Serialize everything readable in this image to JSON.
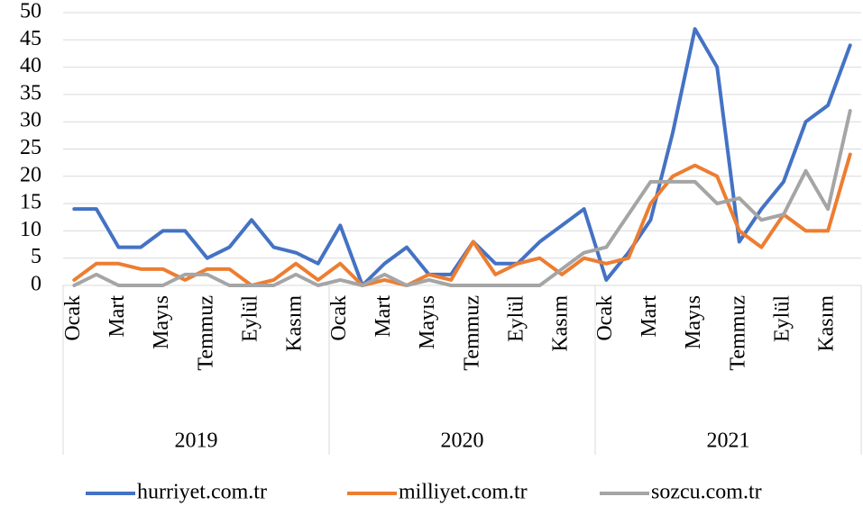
{
  "chart_data": {
    "type": "line",
    "categories": [
      "Ocak",
      null,
      "Mart",
      null,
      "Mayıs",
      null,
      "Temmuz",
      null,
      "Eylül",
      null,
      "Kasım",
      null,
      "Ocak",
      null,
      "Mart",
      null,
      "Mayıs",
      null,
      "Temmuz",
      null,
      "Eylül",
      null,
      "Kasım",
      null,
      "Ocak",
      null,
      "Mart",
      null,
      "Mayıs",
      null,
      "Temmuz",
      null,
      "Eylül",
      null,
      "Kasım",
      null
    ],
    "group_labels": [
      "2019",
      "2020",
      "2021"
    ],
    "series": [
      {
        "name": "hurriyet.com.tr",
        "color": "#4472c4",
        "values": [
          14,
          14,
          7,
          7,
          10,
          10,
          5,
          7,
          12,
          7,
          6,
          4,
          11,
          0,
          4,
          7,
          2,
          2,
          8,
          4,
          4,
          8,
          11,
          14,
          1,
          6,
          12,
          28,
          47,
          40,
          8,
          14,
          19,
          30,
          33,
          44
        ]
      },
      {
        "name": "milliyet.com.tr",
        "color": "#ed7d31",
        "values": [
          1,
          4,
          4,
          3,
          3,
          1,
          3,
          3,
          0,
          1,
          4,
          1,
          4,
          0,
          1,
          0,
          2,
          1,
          8,
          2,
          4,
          5,
          2,
          5,
          4,
          5,
          15,
          20,
          22,
          20,
          10,
          7,
          13,
          10,
          10,
          24
        ]
      },
      {
        "name": "sozcu.com.tr",
        "color": "#a5a5a5",
        "values": [
          0,
          2,
          0,
          0,
          0,
          2,
          2,
          0,
          0,
          0,
          2,
          0,
          1,
          0,
          2,
          0,
          1,
          0,
          0,
          0,
          0,
          0,
          3,
          6,
          7,
          13,
          19,
          19,
          19,
          15,
          16,
          12,
          13,
          21,
          14,
          32
        ]
      }
    ],
    "ylim": [
      0,
      50
    ],
    "yticks": [
      0,
      5,
      10,
      15,
      20,
      25,
      30,
      35,
      40,
      45,
      50
    ],
    "grid": true,
    "legend": "bottom"
  }
}
